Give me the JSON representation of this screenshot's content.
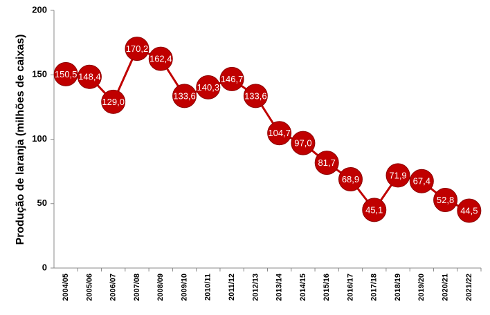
{
  "chart_data": {
    "type": "line",
    "y_label": "Produção de laranja (milhões de caixas)",
    "categories": [
      "2004/05",
      "2005/06",
      "2006/07",
      "2007/08",
      "2008/09",
      "2009/10",
      "2010/11",
      "2011/12",
      "2012/13",
      "2013/14",
      "2014/15",
      "2015/16",
      "2016/17",
      "2017/18",
      "2018/19",
      "2019/20",
      "2020/21",
      "2021/22"
    ],
    "values": [
      150.5,
      148.4,
      129.0,
      170.2,
      162.4,
      133.6,
      140.3,
      146.7,
      133.6,
      104.7,
      97.0,
      81.7,
      68.9,
      45.1,
      71.9,
      67.4,
      52.8,
      44.5
    ],
    "value_labels": [
      "150,5",
      "148,4",
      "129,0",
      "170,2",
      "162,4",
      "133,6",
      "140,3",
      "146,7",
      "133,6",
      "104,7",
      "97,0",
      "81,7",
      "68,9",
      "45,1",
      "71,9",
      "67,4",
      "52,8",
      "44,5"
    ],
    "color": "#c00000",
    "ylim": [
      0,
      200
    ],
    "yticks": [
      0,
      50,
      100,
      150,
      200
    ],
    "grid": false
  }
}
